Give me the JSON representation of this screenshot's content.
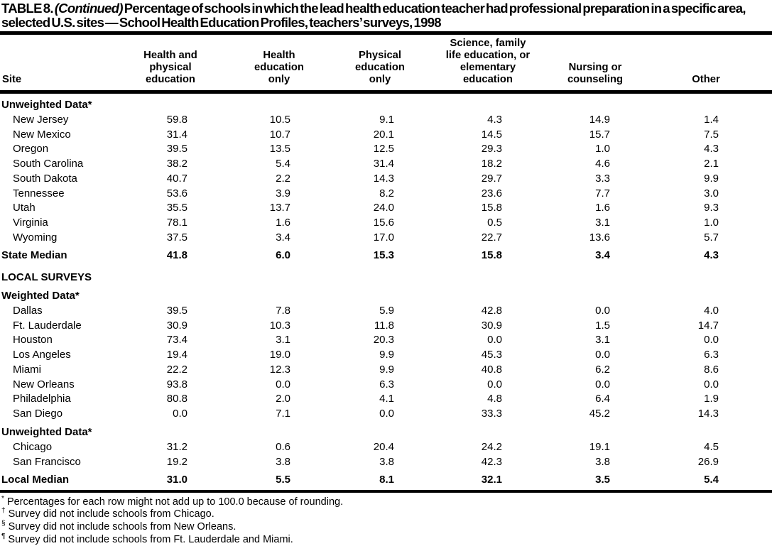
{
  "title": {
    "label": "TABLE 8.",
    "continued": "(Continued)",
    "text": "Percentage of schools in which the lead health education teacher had professional preparation in a specific area, selected U.S. sites — School Health Education Profiles, teachers’ surveys, 1998"
  },
  "table": {
    "site_header": "Site",
    "columns": [
      {
        "name": "health-and-physical-education",
        "lines": [
          "Health and",
          "physical",
          "education"
        ]
      },
      {
        "name": "health-education-only",
        "lines": [
          "Health",
          "education",
          "only"
        ]
      },
      {
        "name": "physical-education-only",
        "lines": [
          "Physical",
          "education",
          "only"
        ]
      },
      {
        "name": "science-family-life-or-elementary",
        "lines": [
          "Science, family",
          "life education, or",
          "elementary",
          "education"
        ]
      },
      {
        "name": "nursing-or-counseling",
        "lines": [
          "Nursing or",
          "counseling"
        ]
      },
      {
        "name": "other",
        "lines": [
          "Other"
        ]
      }
    ],
    "rows": [
      {
        "type": "section",
        "site": "Unweighted Data*"
      },
      {
        "type": "data",
        "site": "New Jersey",
        "values": [
          "59.8",
          "10.5",
          "9.1",
          "4.3",
          "14.9",
          "1.4"
        ]
      },
      {
        "type": "data",
        "site": "New Mexico",
        "values": [
          "31.4",
          "10.7",
          "20.1",
          "14.5",
          "15.7",
          "7.5"
        ]
      },
      {
        "type": "data",
        "site": "Oregon",
        "values": [
          "39.5",
          "13.5",
          "12.5",
          "29.3",
          "1.0",
          "4.3"
        ]
      },
      {
        "type": "data",
        "site": "South Carolina",
        "values": [
          "38.2",
          "5.4",
          "31.4",
          "18.2",
          "4.6",
          "2.1"
        ]
      },
      {
        "type": "data",
        "site": "South Dakota",
        "values": [
          "40.7",
          "2.2",
          "14.3",
          "29.7",
          "3.3",
          "9.9"
        ]
      },
      {
        "type": "data",
        "site": "Tennessee",
        "values": [
          "53.6",
          "3.9",
          "8.2",
          "23.6",
          "7.7",
          "3.0"
        ]
      },
      {
        "type": "data",
        "site": "Utah",
        "values": [
          "35.5",
          "13.7",
          "24.0",
          "15.8",
          "1.6",
          "9.3"
        ]
      },
      {
        "type": "data",
        "site": "Virginia",
        "values": [
          "78.1",
          "1.6",
          "15.6",
          "0.5",
          "3.1",
          "1.0"
        ]
      },
      {
        "type": "data",
        "site": "Wyoming",
        "values": [
          "37.5",
          "3.4",
          "17.0",
          "22.7",
          "13.6",
          "5.7"
        ]
      },
      {
        "type": "median",
        "site": "State Median",
        "values": [
          "41.8",
          "6.0",
          "15.3",
          "15.8",
          "3.4",
          "4.3"
        ]
      },
      {
        "type": "caps",
        "site": "LOCAL SURVEYS"
      },
      {
        "type": "section",
        "site": "Weighted Data*"
      },
      {
        "type": "data",
        "site": "Dallas",
        "values": [
          "39.5",
          "7.8",
          "5.9",
          "42.8",
          "0.0",
          "4.0"
        ]
      },
      {
        "type": "data",
        "site": "Ft. Lauderdale",
        "values": [
          "30.9",
          "10.3",
          "11.8",
          "30.9",
          "1.5",
          "14.7"
        ]
      },
      {
        "type": "data",
        "site": "Houston",
        "values": [
          "73.4",
          "3.1",
          "20.3",
          "0.0",
          "3.1",
          "0.0"
        ]
      },
      {
        "type": "data",
        "site": "Los Angeles",
        "values": [
          "19.4",
          "19.0",
          "9.9",
          "45.3",
          "0.0",
          "6.3"
        ]
      },
      {
        "type": "data",
        "site": "Miami",
        "values": [
          "22.2",
          "12.3",
          "9.9",
          "40.8",
          "6.2",
          "8.6"
        ]
      },
      {
        "type": "data",
        "site": "New Orleans",
        "values": [
          "93.8",
          "0.0",
          "6.3",
          "0.0",
          "0.0",
          "0.0"
        ]
      },
      {
        "type": "data",
        "site": "Philadelphia",
        "values": [
          "80.8",
          "2.0",
          "4.1",
          "4.8",
          "6.4",
          "1.9"
        ]
      },
      {
        "type": "data",
        "site": "San Diego",
        "values": [
          "0.0",
          "7.1",
          "0.0",
          "33.3",
          "45.2",
          "14.3"
        ]
      },
      {
        "type": "section",
        "site": "Unweighted Data*"
      },
      {
        "type": "data",
        "site": "Chicago",
        "values": [
          "31.2",
          "0.6",
          "20.4",
          "24.2",
          "19.1",
          "4.5"
        ]
      },
      {
        "type": "data",
        "site": "San Francisco",
        "values": [
          "19.2",
          "3.8",
          "3.8",
          "42.3",
          "3.8",
          "26.9"
        ]
      },
      {
        "type": "median",
        "site": "Local Median",
        "values": [
          "31.0",
          "5.5",
          "8.1",
          "32.1",
          "3.5",
          "5.4"
        ]
      }
    ]
  },
  "footnotes": [
    {
      "symbol": "*",
      "text": "Percentages for each row might not add up to 100.0 because of rounding."
    },
    {
      "symbol": "†",
      "text": "Survey did not include schools from Chicago."
    },
    {
      "symbol": "§",
      "text": "Survey did not include schools from New Orleans."
    },
    {
      "symbol": "¶",
      "text": "Survey did not include schools from Ft. Lauderdale and Miami."
    }
  ]
}
